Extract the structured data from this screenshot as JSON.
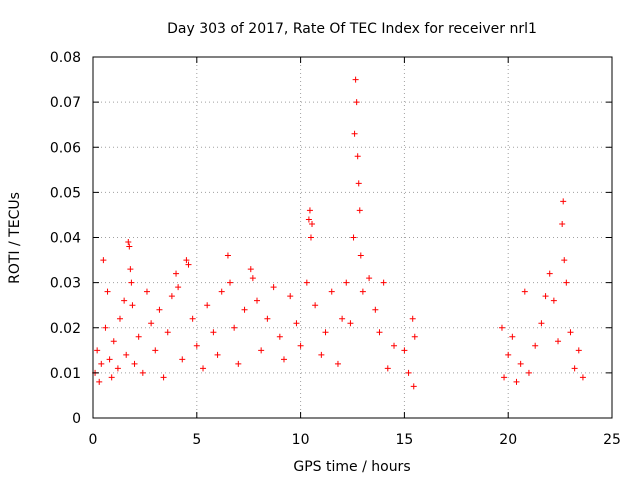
{
  "chart_data": {
    "type": "scatter",
    "title": "Day 303 of 2017, Rate Of TEC Index for receiver nrl1",
    "xlabel": "GPS time / hours",
    "ylabel": "ROTI / TECUs",
    "xlim": [
      0,
      25
    ],
    "ylim": [
      0,
      0.08
    ],
    "xticks": [
      "0",
      "5",
      "10",
      "15",
      "20",
      "25"
    ],
    "yticks": [
      "0",
      "0.01",
      "0.02",
      "0.03",
      "0.04",
      "0.05",
      "0.06",
      "0.07",
      "0.08"
    ],
    "grid": true,
    "marker": "+",
    "color": "#ff0000",
    "series": [
      {
        "points": [
          [
            0.1,
            0.01
          ],
          [
            0.2,
            0.015
          ],
          [
            0.3,
            0.008
          ],
          [
            0.4,
            0.012
          ],
          [
            0.5,
            0.035
          ],
          [
            0.6,
            0.02
          ],
          [
            0.7,
            0.028
          ],
          [
            0.8,
            0.013
          ],
          [
            0.9,
            0.009
          ],
          [
            1.0,
            0.017
          ],
          [
            1.2,
            0.011
          ],
          [
            1.3,
            0.022
          ],
          [
            1.5,
            0.026
          ],
          [
            1.6,
            0.014
          ],
          [
            1.7,
            0.039
          ],
          [
            1.75,
            0.038
          ],
          [
            1.8,
            0.033
          ],
          [
            1.85,
            0.03
          ],
          [
            1.9,
            0.025
          ],
          [
            2.0,
            0.012
          ],
          [
            2.2,
            0.018
          ],
          [
            2.4,
            0.01
          ],
          [
            2.6,
            0.028
          ],
          [
            2.8,
            0.021
          ],
          [
            3.0,
            0.015
          ],
          [
            3.2,
            0.024
          ],
          [
            3.4,
            0.009
          ],
          [
            3.6,
            0.019
          ],
          [
            3.8,
            0.027
          ],
          [
            4.0,
            0.032
          ],
          [
            4.1,
            0.029
          ],
          [
            4.3,
            0.013
          ],
          [
            4.5,
            0.035
          ],
          [
            4.6,
            0.034
          ],
          [
            4.8,
            0.022
          ],
          [
            5.0,
            0.016
          ],
          [
            5.3,
            0.011
          ],
          [
            5.5,
            0.025
          ],
          [
            5.8,
            0.019
          ],
          [
            6.0,
            0.014
          ],
          [
            6.2,
            0.028
          ],
          [
            6.5,
            0.036
          ],
          [
            6.6,
            0.03
          ],
          [
            6.8,
            0.02
          ],
          [
            7.0,
            0.012
          ],
          [
            7.3,
            0.024
          ],
          [
            7.6,
            0.033
          ],
          [
            7.7,
            0.031
          ],
          [
            7.9,
            0.026
          ],
          [
            8.1,
            0.015
          ],
          [
            8.4,
            0.022
          ],
          [
            8.7,
            0.029
          ],
          [
            9.0,
            0.018
          ],
          [
            9.2,
            0.013
          ],
          [
            9.5,
            0.027
          ],
          [
            9.8,
            0.021
          ],
          [
            10.0,
            0.016
          ],
          [
            10.3,
            0.03
          ],
          [
            10.4,
            0.044
          ],
          [
            10.45,
            0.046
          ],
          [
            10.5,
            0.04
          ],
          [
            10.55,
            0.043
          ],
          [
            10.7,
            0.025
          ],
          [
            11.0,
            0.014
          ],
          [
            11.2,
            0.019
          ],
          [
            11.5,
            0.028
          ],
          [
            11.8,
            0.012
          ],
          [
            12.0,
            0.022
          ],
          [
            12.2,
            0.03
          ],
          [
            12.4,
            0.021
          ],
          [
            12.55,
            0.04
          ],
          [
            12.6,
            0.063
          ],
          [
            12.65,
            0.075
          ],
          [
            12.7,
            0.07
          ],
          [
            12.75,
            0.058
          ],
          [
            12.8,
            0.052
          ],
          [
            12.85,
            0.046
          ],
          [
            12.9,
            0.036
          ],
          [
            13.0,
            0.028
          ],
          [
            13.3,
            0.031
          ],
          [
            13.6,
            0.024
          ],
          [
            13.8,
            0.019
          ],
          [
            14.0,
            0.03
          ],
          [
            14.2,
            0.011
          ],
          [
            14.5,
            0.016
          ],
          [
            15.0,
            0.015
          ],
          [
            15.2,
            0.01
          ],
          [
            15.4,
            0.022
          ],
          [
            15.45,
            0.007
          ],
          [
            15.5,
            0.018
          ],
          [
            19.7,
            0.02
          ],
          [
            19.8,
            0.009
          ],
          [
            20.0,
            0.014
          ],
          [
            20.2,
            0.018
          ],
          [
            20.4,
            0.008
          ],
          [
            20.6,
            0.012
          ],
          [
            20.8,
            0.028
          ],
          [
            21.0,
            0.01
          ],
          [
            21.3,
            0.016
          ],
          [
            21.6,
            0.021
          ],
          [
            21.8,
            0.027
          ],
          [
            22.0,
            0.032
          ],
          [
            22.2,
            0.026
          ],
          [
            22.4,
            0.017
          ],
          [
            22.6,
            0.043
          ],
          [
            22.65,
            0.048
          ],
          [
            22.7,
            0.035
          ],
          [
            22.8,
            0.03
          ],
          [
            23.0,
            0.019
          ],
          [
            23.2,
            0.011
          ],
          [
            23.4,
            0.015
          ],
          [
            23.6,
            0.009
          ]
        ]
      }
    ]
  }
}
